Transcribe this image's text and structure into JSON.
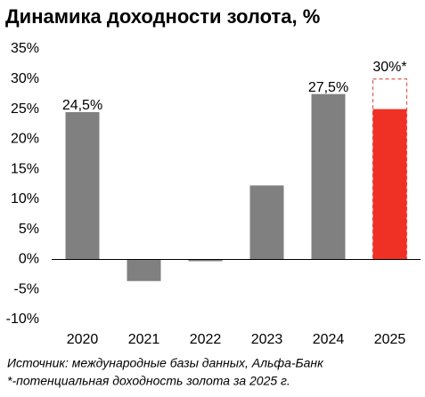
{
  "chart_data": {
    "type": "bar",
    "title": "Динамика доходности золота, %",
    "categories": [
      "2020",
      "2021",
      "2022",
      "2023",
      "2024",
      "2025"
    ],
    "values": [
      24.5,
      -3.6,
      -0.3,
      12.3,
      27.5,
      25
    ],
    "value_labels": [
      "24,5%",
      null,
      null,
      null,
      "27,5%",
      null
    ],
    "colors": [
      "#808080",
      "#808080",
      "#808080",
      "#808080",
      "#808080",
      "#ee3124"
    ],
    "potential": {
      "values": [
        null,
        null,
        null,
        null,
        null,
        30
      ],
      "value_labels": [
        null,
        null,
        null,
        null,
        null,
        "30%*"
      ],
      "color": "#e05a4e"
    },
    "ylim": [
      -10,
      35
    ],
    "yticks": [
      {
        "value": -10,
        "label": "-10%"
      },
      {
        "value": -5,
        "label": "-5%"
      },
      {
        "value": 0,
        "label": "0%"
      },
      {
        "value": 5,
        "label": "5%"
      },
      {
        "value": 10,
        "label": "10%"
      },
      {
        "value": 15,
        "label": "15%"
      },
      {
        "value": 20,
        "label": "20%"
      },
      {
        "value": 25,
        "label": "25%"
      },
      {
        "value": 30,
        "label": "30%"
      },
      {
        "value": 35,
        "label": "35%"
      }
    ],
    "source": "Источник: международные базы данных, Альфа-Банк",
    "note": "*-потенциальная доходность золота за 2025 г."
  }
}
